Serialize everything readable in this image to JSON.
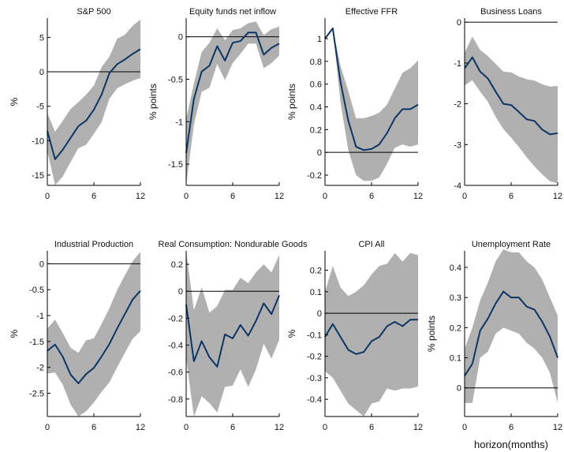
{
  "figure": {
    "xlabel": "horizon(months)"
  },
  "colors": {
    "band": "#b0b0b0",
    "line": "#0d3564",
    "axis": "#000000",
    "zero": "#000000"
  },
  "chart_data": [
    {
      "type": "line",
      "title": "S&P 500",
      "ylabel": "%",
      "x": [
        0,
        1,
        2,
        3,
        4,
        5,
        6,
        7,
        8,
        9,
        10,
        11,
        12
      ],
      "ylim": [
        -16.5,
        7.8
      ],
      "yticks": [
        -15,
        -10,
        -5,
        0,
        5
      ],
      "ytick_labels": [
        "-15",
        "-10",
        "-5",
        "0",
        "5"
      ],
      "xlim": [
        0,
        12
      ],
      "xticks": [
        0,
        6,
        12
      ],
      "xtick_labels": [
        "0",
        "6",
        "12"
      ],
      "zero_line": 0,
      "series": [
        {
          "role": "estimate",
          "values": [
            -8.6,
            -12.7,
            -11.3,
            -9.6,
            -7.9,
            -7.1,
            -5.5,
            -3.3,
            -0.2,
            1.1,
            1.8,
            2.6,
            3.3
          ]
        },
        {
          "role": "upper",
          "values": [
            -6,
            -8.7,
            -7.1,
            -5.4,
            -4.4,
            -3.3,
            -2,
            0.7,
            2.2,
            4.8,
            5.4,
            6.7,
            7.6
          ]
        },
        {
          "role": "lower",
          "values": [
            -11.5,
            -16.5,
            -15.2,
            -13.1,
            -11.1,
            -10.6,
            -9,
            -7.3,
            -3.9,
            -2.4,
            -1.8,
            -1.3,
            -0.9
          ]
        }
      ]
    },
    {
      "type": "line",
      "title": "Equity funds net inflow",
      "ylabel": "% points",
      "x": [
        0,
        1,
        2,
        3,
        4,
        5,
        6,
        7,
        8,
        9,
        10,
        11,
        12
      ],
      "ylim": [
        -1.75,
        0.22
      ],
      "yticks": [
        -1.5,
        -1,
        -0.5,
        0
      ],
      "ytick_labels": [
        "-1.5",
        "-1",
        "-0.5",
        "0"
      ],
      "xlim": [
        0,
        12
      ],
      "xticks": [
        0,
        6,
        12
      ],
      "xtick_labels": [
        "0",
        "6",
        "12"
      ],
      "zero_line": 0,
      "series": [
        {
          "role": "estimate",
          "values": [
            -1.37,
            -0.73,
            -0.41,
            -0.34,
            -0.11,
            -0.28,
            -0.07,
            -0.05,
            0.05,
            0.05,
            -0.21,
            -0.13,
            -0.08
          ]
        },
        {
          "role": "upper",
          "values": [
            -0.97,
            -0.55,
            -0.18,
            -0.07,
            0.1,
            -0.04,
            0.08,
            0.1,
            0.16,
            0.18,
            0.02,
            0.09,
            0.12
          ]
        },
        {
          "role": "lower",
          "values": [
            -1.75,
            -1.03,
            -0.65,
            -0.6,
            -0.32,
            -0.51,
            -0.31,
            -0.2,
            -0.08,
            -0.08,
            -0.37,
            -0.31,
            -0.22
          ]
        }
      ]
    },
    {
      "type": "line",
      "title": "Effective FFR",
      "ylabel": "% points",
      "x": [
        0,
        1,
        2,
        3,
        4,
        5,
        6,
        7,
        8,
        9,
        10,
        11,
        12
      ],
      "ylim": [
        -0.29,
        1.18
      ],
      "yticks": [
        -0.2,
        0,
        0.2,
        0.4,
        0.6,
        0.8,
        1
      ],
      "ytick_labels": [
        "-0.2",
        "0",
        "0.2",
        "0.4",
        "0.6",
        "0.8",
        "1"
      ],
      "xlim": [
        0,
        12
      ],
      "xticks": [
        0,
        6,
        12
      ],
      "xtick_labels": [
        "0",
        "6",
        "12"
      ],
      "zero_line": 0,
      "series": [
        {
          "role": "estimate",
          "values": [
            1,
            1.09,
            0.62,
            0.28,
            0.05,
            0.02,
            0.03,
            0.07,
            0.17,
            0.3,
            0.38,
            0.38,
            0.42
          ]
        },
        {
          "role": "upper",
          "values": [
            1,
            1.09,
            0.76,
            0.54,
            0.3,
            0.3,
            0.32,
            0.35,
            0.42,
            0.56,
            0.7,
            0.74,
            0.81
          ]
        },
        {
          "role": "lower",
          "values": [
            1,
            1.09,
            0.44,
            0.02,
            -0.2,
            -0.25,
            -0.25,
            -0.22,
            -0.1,
            0.04,
            0.07,
            0.05,
            0.07
          ]
        }
      ]
    },
    {
      "type": "line",
      "title": "Business Loans",
      "ylabel": "",
      "x": [
        0,
        1,
        2,
        3,
        4,
        5,
        6,
        7,
        8,
        9,
        10,
        11,
        12
      ],
      "ylim": [
        -4,
        0.1
      ],
      "yticks": [
        -4,
        -3,
        -2,
        -1,
        0
      ],
      "ytick_labels": [
        "-4",
        "-3",
        "-2",
        "-1",
        "0"
      ],
      "xlim": [
        0,
        12
      ],
      "xticks": [
        0,
        6,
        12
      ],
      "xtick_labels": [
        "0",
        "6",
        "12"
      ],
      "zero_line": 0,
      "series": [
        {
          "role": "estimate",
          "values": [
            -1.13,
            -0.86,
            -1.21,
            -1.38,
            -1.7,
            -2,
            -2.03,
            -2.2,
            -2.38,
            -2.42,
            -2.63,
            -2.75,
            -2.72
          ]
        },
        {
          "role": "upper",
          "values": [
            -0.75,
            -0.35,
            -0.68,
            -0.83,
            -1.02,
            -1.21,
            -1.23,
            -1.33,
            -1.4,
            -1.43,
            -1.52,
            -1.58,
            -1.56
          ]
        },
        {
          "role": "lower",
          "values": [
            -1.55,
            -1.42,
            -1.7,
            -1.95,
            -2.32,
            -2.62,
            -2.83,
            -3.06,
            -3.31,
            -3.53,
            -3.73,
            -3.9,
            -3.95
          ]
        }
      ]
    },
    {
      "type": "line",
      "title": "Industrial Production",
      "ylabel": "%",
      "x": [
        0,
        1,
        2,
        3,
        4,
        5,
        6,
        7,
        8,
        9,
        10,
        11,
        12
      ],
      "ylim": [
        -2.95,
        0.25
      ],
      "yticks": [
        -2.5,
        -2,
        -1.5,
        -1,
        -0.5,
        0
      ],
      "ytick_labels": [
        "-2.5",
        "-2",
        "-1.5",
        "-1",
        "-0.5",
        "0"
      ],
      "xlim": [
        0,
        12
      ],
      "xticks": [
        0,
        6,
        12
      ],
      "xtick_labels": [
        "0",
        "6",
        "12"
      ],
      "zero_line": 0,
      "series": [
        {
          "role": "estimate",
          "values": [
            -1.68,
            -1.56,
            -1.8,
            -2.14,
            -2.31,
            -2.13,
            -2.01,
            -1.79,
            -1.55,
            -1.25,
            -0.97,
            -0.69,
            -0.52
          ]
        },
        {
          "role": "upper",
          "values": [
            -1.25,
            -1.08,
            -1.34,
            -1.62,
            -1.72,
            -1.48,
            -1.44,
            -1.16,
            -0.86,
            -0.51,
            -0.22,
            0.05,
            0.23
          ]
        },
        {
          "role": "lower",
          "values": [
            -2.12,
            -2.1,
            -2.34,
            -2.72,
            -2.95,
            -2.85,
            -2.68,
            -2.47,
            -2.29,
            -2,
            -1.72,
            -1.45,
            -1.3
          ]
        }
      ]
    },
    {
      "type": "line",
      "title": "Real Consumption: Nondurable Goods",
      "ylabel": "",
      "x": [
        0,
        1,
        2,
        3,
        4,
        5,
        6,
        7,
        8,
        9,
        10,
        11,
        12
      ],
      "ylim": [
        -0.93,
        0.3
      ],
      "yticks": [
        -0.8,
        -0.6,
        -0.4,
        -0.2,
        0,
        0.2
      ],
      "ytick_labels": [
        "-0.8",
        "-0.6",
        "-0.4",
        "-0.2",
        "0",
        "0.2"
      ],
      "xlim": [
        0,
        12
      ],
      "xticks": [
        0,
        6,
        12
      ],
      "xtick_labels": [
        "0",
        "6",
        "12"
      ],
      "zero_line": 0,
      "series": [
        {
          "role": "estimate",
          "values": [
            -0.1,
            -0.52,
            -0.37,
            -0.49,
            -0.56,
            -0.32,
            -0.35,
            -0.25,
            -0.33,
            -0.22,
            -0.09,
            -0.17,
            -0.03
          ]
        },
        {
          "role": "upper",
          "values": [
            0.3,
            -0.14,
            0.03,
            -0.16,
            -0.11,
            0.01,
            0.01,
            0.1,
            0.06,
            0.14,
            0.2,
            0.14,
            0.27
          ]
        },
        {
          "role": "lower",
          "values": [
            -0.5,
            -0.93,
            -0.78,
            -0.83,
            -0.9,
            -0.71,
            -0.7,
            -0.58,
            -0.71,
            -0.58,
            -0.39,
            -0.5,
            -0.36
          ]
        }
      ]
    },
    {
      "type": "line",
      "title": "CPI All",
      "ylabel": "%",
      "x": [
        0,
        1,
        2,
        3,
        4,
        5,
        6,
        7,
        8,
        9,
        10,
        11,
        12
      ],
      "ylim": [
        -0.48,
        0.29
      ],
      "yticks": [
        -0.4,
        -0.3,
        -0.2,
        -0.1,
        0,
        0.1,
        0.2
      ],
      "ytick_labels": [
        "-0.4",
        "-0.3",
        "-0.2",
        "-0.1",
        "0",
        "0.1",
        "0.2"
      ],
      "xlim": [
        0,
        12
      ],
      "xticks": [
        0,
        6,
        12
      ],
      "xtick_labels": [
        "0",
        "6",
        "12"
      ],
      "zero_line": 0,
      "series": [
        {
          "role": "estimate",
          "values": [
            -0.11,
            -0.05,
            -0.11,
            -0.17,
            -0.19,
            -0.18,
            -0.13,
            -0.11,
            -0.06,
            -0.04,
            -0.06,
            -0.03,
            -0.03
          ]
        },
        {
          "role": "upper",
          "values": [
            0.1,
            0.22,
            0.12,
            0.08,
            0.1,
            0.13,
            0.18,
            0.22,
            0.23,
            0.28,
            0.24,
            0.28,
            0.27
          ]
        },
        {
          "role": "lower",
          "values": [
            -0.27,
            -0.3,
            -0.36,
            -0.42,
            -0.45,
            -0.48,
            -0.42,
            -0.41,
            -0.35,
            -0.36,
            -0.35,
            -0.35,
            -0.34
          ]
        }
      ]
    },
    {
      "type": "line",
      "title": "Unemployment Rate",
      "ylabel": "% points",
      "x": [
        0,
        1,
        2,
        3,
        4,
        5,
        6,
        7,
        8,
        9,
        10,
        11,
        12
      ],
      "ylim": [
        -0.095,
        0.455
      ],
      "yticks": [
        0,
        0.1,
        0.2,
        0.3,
        0.4
      ],
      "ytick_labels": [
        "0",
        "0.1",
        "0.2",
        "0.3",
        "0.4"
      ],
      "xlim": [
        0,
        12
      ],
      "xticks": [
        0,
        6,
        12
      ],
      "xtick_labels": [
        "0",
        "6",
        "12"
      ],
      "zero_line": 0,
      "series": [
        {
          "role": "estimate",
          "values": [
            0.04,
            0.08,
            0.19,
            0.23,
            0.28,
            0.32,
            0.3,
            0.3,
            0.27,
            0.26,
            0.22,
            0.17,
            0.1
          ]
        },
        {
          "role": "upper",
          "values": [
            0.13,
            0.2,
            0.29,
            0.35,
            0.42,
            0.46,
            0.45,
            0.45,
            0.42,
            0.4,
            0.36,
            0.3,
            0.24
          ]
        },
        {
          "role": "lower",
          "values": [
            -0.05,
            -0.05,
            0.1,
            0.12,
            0.18,
            0.2,
            0.19,
            0.18,
            0.15,
            0.13,
            0.1,
            0.05,
            -0.05
          ]
        }
      ]
    }
  ]
}
